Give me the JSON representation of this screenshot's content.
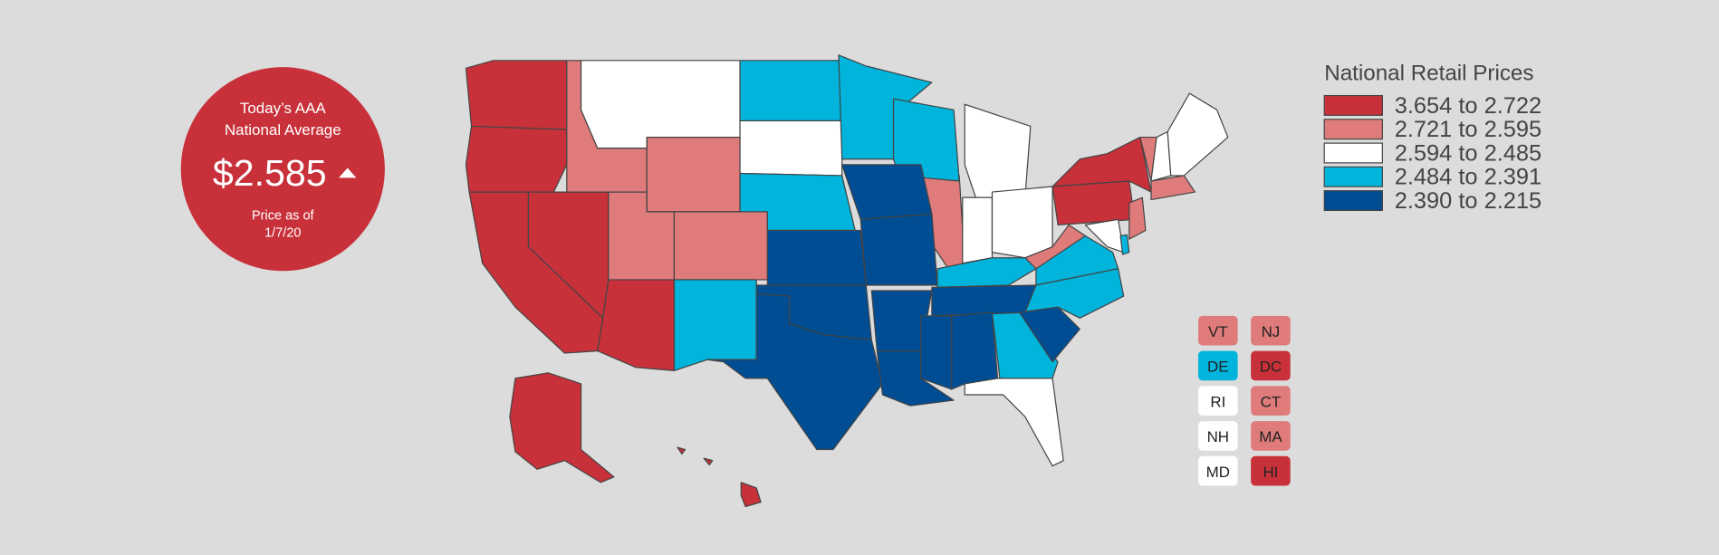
{
  "badge": {
    "line1": "Today’s AAA",
    "line2": "National Average",
    "price": "$2.585",
    "note": "Price as of",
    "date": "1/7/20",
    "color": "#c8313a"
  },
  "legend": {
    "title": "National Retail Prices",
    "items": [
      {
        "label": "3.654 to 2.722",
        "color": "#c8313a"
      },
      {
        "label": "2.721 to 2.595",
        "color": "#df7b7b"
      },
      {
        "label": "2.594 to 2.485",
        "color": "#ffffff"
      },
      {
        "label": "2.484 to 2.391",
        "color": "#00b4dc"
      },
      {
        "label": "2.390 to 2.215",
        "color": "#004d93"
      }
    ]
  },
  "state_boxes": [
    {
      "label": "VT",
      "color": "#df7b7b"
    },
    {
      "label": "NJ",
      "color": "#df7b7b"
    },
    {
      "label": "DE",
      "color": "#00b4dc"
    },
    {
      "label": "DC",
      "color": "#c8313a"
    },
    {
      "label": "RI",
      "color": "#ffffff"
    },
    {
      "label": "CT",
      "color": "#df7b7b"
    },
    {
      "label": "NH",
      "color": "#ffffff"
    },
    {
      "label": "MA",
      "color": "#df7b7b"
    },
    {
      "label": "MD",
      "color": "#ffffff"
    },
    {
      "label": "HI",
      "color": "#c8313a"
    }
  ]
}
